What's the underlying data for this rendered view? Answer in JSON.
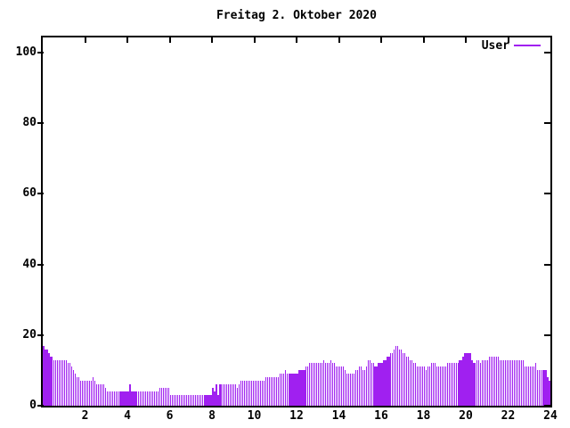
{
  "chart_data": {
    "type": "bar",
    "title": "Freitag 2. Oktober 2020",
    "xlabel": "",
    "ylabel": "",
    "xlim": [
      0,
      24
    ],
    "ylim": [
      0,
      104
    ],
    "x_tick_labels": [
      "2",
      "4",
      "6",
      "8",
      "10",
      "12",
      "14",
      "16",
      "18",
      "20",
      "22",
      "24"
    ],
    "x_tick_values": [
      2,
      4,
      6,
      8,
      10,
      12,
      14,
      16,
      18,
      20,
      22,
      24
    ],
    "y_tick_labels": [
      "0",
      "20",
      "40",
      "60",
      "80",
      "100"
    ],
    "y_tick_values": [
      0,
      20,
      40,
      60,
      80,
      100
    ],
    "grid": false,
    "legend": {
      "position": "top-right-inside",
      "entries": [
        {
          "label": "User",
          "color": "#a020f0"
        }
      ]
    },
    "bar_interval_minutes": 5,
    "x_start_hour": 0,
    "series": [
      {
        "name": "User",
        "color": "#a020f0",
        "values": [
          17,
          16,
          16,
          15,
          14,
          14,
          13,
          13,
          13,
          13,
          13,
          13,
          13,
          13,
          12,
          12,
          11,
          10,
          9,
          8,
          8,
          7,
          7,
          7,
          7,
          7,
          7,
          7,
          8,
          7,
          6,
          6,
          6,
          6,
          6,
          5,
          4,
          4,
          4,
          4,
          4,
          4,
          4,
          4,
          4,
          4,
          4,
          4,
          4,
          6,
          4,
          4,
          4,
          4,
          4,
          4,
          4,
          4,
          4,
          4,
          4,
          4,
          4,
          4,
          4,
          4,
          5,
          5,
          5,
          5,
          5,
          5,
          3,
          3,
          3,
          3,
          3,
          3,
          3,
          3,
          3,
          3,
          3,
          3,
          3,
          3,
          3,
          3,
          3,
          3,
          3,
          3,
          3,
          3,
          3,
          3,
          5,
          4,
          6,
          3,
          6,
          6,
          6,
          6,
          6,
          6,
          6,
          6,
          6,
          6,
          5,
          6,
          7,
          7,
          7,
          7,
          7,
          7,
          7,
          7,
          7,
          7,
          7,
          7,
          7,
          7,
          8,
          8,
          8,
          8,
          8,
          8,
          8,
          8,
          9,
          9,
          9,
          10,
          9,
          9,
          9,
          9,
          9,
          9,
          9,
          10,
          10,
          10,
          10,
          11,
          11,
          12,
          12,
          12,
          12,
          12,
          12,
          12,
          12,
          13,
          12,
          12,
          12,
          13,
          12,
          12,
          11,
          11,
          11,
          11,
          11,
          10,
          9,
          9,
          9,
          9,
          9,
          10,
          10,
          11,
          11,
          10,
          10,
          11,
          13,
          13,
          12,
          12,
          11,
          11,
          12,
          12,
          12,
          13,
          13,
          14,
          14,
          15,
          15,
          16,
          17,
          17,
          16,
          16,
          15,
          15,
          14,
          14,
          13,
          13,
          12,
          12,
          11,
          11,
          11,
          11,
          11,
          10,
          11,
          11,
          12,
          12,
          12,
          11,
          11,
          11,
          11,
          11,
          11,
          12,
          12,
          12,
          12,
          12,
          12,
          12,
          13,
          13,
          14,
          15,
          15,
          15,
          15,
          13,
          12,
          12,
          13,
          13,
          12,
          13,
          13,
          13,
          13,
          14,
          14,
          14,
          14,
          14,
          14,
          13,
          13,
          13,
          13,
          13,
          13,
          13,
          13,
          13,
          13,
          13,
          13,
          13,
          13,
          11,
          11,
          11,
          11,
          11,
          11,
          12,
          10,
          10,
          10,
          10,
          10,
          10,
          8,
          7
        ]
      }
    ]
  },
  "colors": {
    "background": "#ffffff",
    "border": "#000000",
    "text": "#000000",
    "bars": "#a020f0"
  }
}
